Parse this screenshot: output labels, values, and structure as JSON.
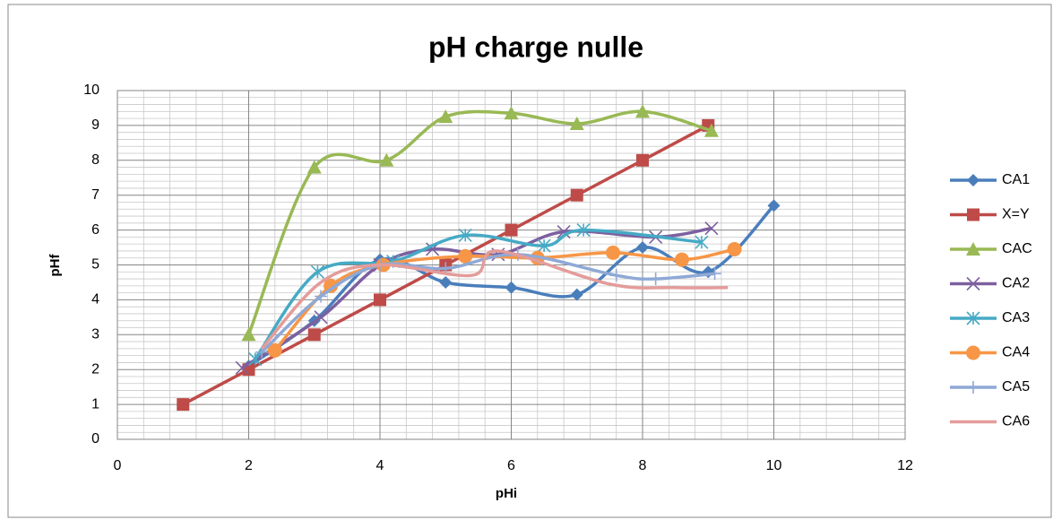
{
  "chart_data": {
    "type": "scatter",
    "title": "pH charge nulle",
    "x_label": "pHi",
    "y_label": "pHf",
    "xlim": [
      0,
      12
    ],
    "xticks": [
      0,
      2,
      4,
      6,
      8,
      10,
      12
    ],
    "ylim": [
      0,
      10
    ],
    "yticks": [
      0,
      1,
      2,
      3,
      4,
      5,
      6,
      7,
      8,
      9,
      10
    ],
    "grid": true,
    "minor_grid": true,
    "smooth": true,
    "legend": "right",
    "series": [
      {
        "name": "CA1",
        "color": "#4a7ebb",
        "marker": "diamond",
        "x": [
          2,
          3,
          4,
          5,
          6,
          7,
          8,
          9,
          10
        ],
        "values": [
          2.1,
          3.4,
          5.15,
          4.5,
          4.35,
          4.15,
          5.5,
          4.8,
          6.7
        ]
      },
      {
        "name": "X=Y",
        "color": "#be4b48",
        "marker": "square",
        "x": [
          1,
          2,
          3,
          4,
          5,
          6,
          7,
          8,
          9
        ],
        "values": [
          1,
          2,
          3,
          4,
          5,
          6,
          7,
          8,
          9
        ]
      },
      {
        "name": "CAC",
        "color": "#98b954",
        "marker": "triangle",
        "x": [
          2,
          3,
          4.1,
          5,
          6,
          7,
          8,
          9.05
        ],
        "values": [
          3,
          7.8,
          8.0,
          9.25,
          9.35,
          9.05,
          9.4,
          8.85
        ]
      },
      {
        "name": "CA2",
        "color": "#7d60a0",
        "marker": "x",
        "x": [
          1.9,
          3.1,
          4.0,
          4.8,
          5.8,
          6.8,
          8.2,
          9.05
        ],
        "values": [
          2.05,
          3.5,
          5.0,
          5.45,
          5.3,
          5.95,
          5.8,
          6.05
        ]
      },
      {
        "name": "CA3",
        "color": "#46aac5",
        "marker": "star",
        "x": [
          2.1,
          3.05,
          4.2,
          5.3,
          6.5,
          7.1,
          8.9
        ],
        "values": [
          2.3,
          4.8,
          5.1,
          5.85,
          5.55,
          6.0,
          5.65
        ]
      },
      {
        "name": "CA4",
        "color": "#f79646",
        "marker": "circle",
        "x": [
          2.4,
          3.25,
          4.05,
          5.3,
          6.4,
          7.55,
          8.6,
          9.4
        ],
        "values": [
          2.55,
          4.4,
          5.0,
          5.25,
          5.2,
          5.35,
          5.15,
          5.45
        ]
      },
      {
        "name": "CA5",
        "color": "#8fa9d6",
        "marker": "plus",
        "x": [
          2.2,
          3.1,
          4.0,
          5.0,
          6.1,
          7.6,
          8.2,
          9.1
        ],
        "values": [
          2.5,
          4.1,
          5.0,
          4.9,
          5.3,
          4.7,
          4.6,
          4.75
        ]
      },
      {
        "name": "CA6",
        "color": "#e39c9a",
        "marker": "none",
        "x": [
          2.2,
          3.1,
          4.0,
          5.4,
          5.8,
          7.5,
          8.5,
          9.3
        ],
        "values": [
          2.6,
          4.5,
          5.0,
          4.7,
          5.4,
          4.45,
          4.35,
          4.35
        ]
      }
    ]
  }
}
